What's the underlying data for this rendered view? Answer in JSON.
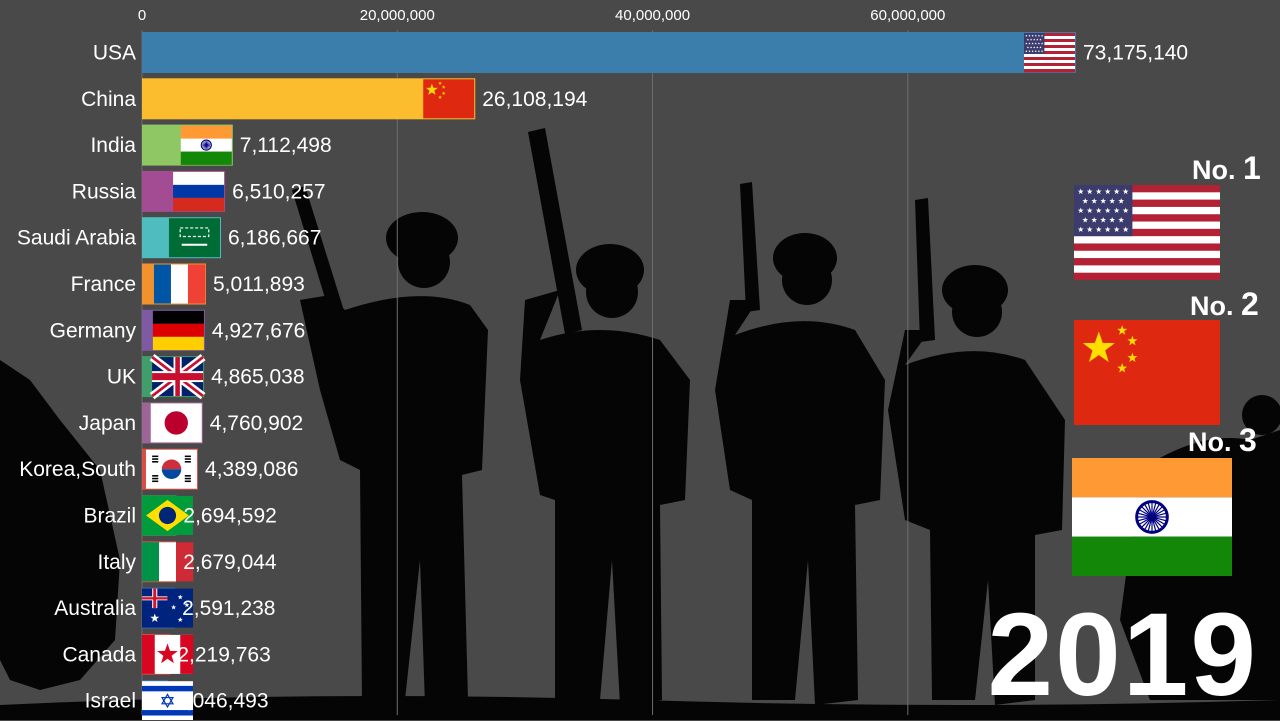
{
  "chart_data": {
    "type": "bar",
    "orientation": "horizontal",
    "categories": [
      "USA",
      "China",
      "India",
      "Russia",
      "Saudi Arabia",
      "France",
      "Germany",
      "UK",
      "Japan",
      "Korea,South",
      "Brazil",
      "Italy",
      "Australia",
      "Canada",
      "Israel"
    ],
    "values": [
      73175140,
      26108194,
      7112498,
      6510257,
      6186667,
      5011893,
      4927676,
      4865038,
      4760902,
      4389086,
      2694592,
      2679044,
      2591238,
      2219763,
      2046493
    ],
    "value_labels": [
      "73,175,140",
      "26,108,194",
      "7,112,498",
      "6,510,257",
      "6,186,667",
      "5,011,893",
      "4,927,676",
      "4,865,038",
      "4,760,902",
      "4,389,086",
      "2,694,592",
      "2,679,044",
      "2,591,238",
      "2,219,763",
      "2,046,493"
    ],
    "colors": [
      "#3b7eab",
      "#fbbd2e",
      "#8fc765",
      "#a34c93",
      "#4fbcbf",
      "#f2922e",
      "#7f5aa2",
      "#3f9e69",
      "#9d6497",
      "#d94f47",
      "#2e8a4f",
      "#d04e4e",
      "#3c66a8",
      "#c64141",
      "#3970b8"
    ],
    "flags": [
      "usa",
      "china",
      "india",
      "russia",
      "saudi",
      "france",
      "germany",
      "uk",
      "japan",
      "korea",
      "brazil",
      "italy",
      "australia",
      "canada",
      "israel"
    ],
    "xlim": [
      0,
      73175140
    ],
    "xticks": [
      0,
      20000000,
      40000000,
      60000000
    ],
    "xtick_labels": [
      "0",
      "20,000,000",
      "40,000,000",
      "60,000,000"
    ],
    "grid": true
  },
  "ranking": [
    {
      "prefix": "No. ",
      "number": "1",
      "flag": "usa"
    },
    {
      "prefix": "No. ",
      "number": "2",
      "flag": "china"
    },
    {
      "prefix": "No. ",
      "number": "3",
      "flag": "india"
    }
  ],
  "year": "2019"
}
